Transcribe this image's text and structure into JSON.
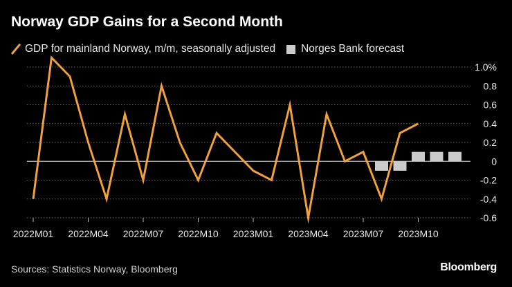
{
  "title": "Norway GDP Gains for a Second Month",
  "legend": {
    "gdp_label": "GDP for mainland Norway, m/m, seasonally adjusted",
    "forecast_label": "Norges Bank forecast"
  },
  "source": "Sources: Statistics Norway, Bloomberg",
  "brand": "Bloomberg",
  "colors": {
    "background": "#000000",
    "line": "#f0a03c",
    "forecast": "#cccccc",
    "grid": "#6e6e6e",
    "text": "#e6e6e6"
  },
  "chart_data": {
    "type": "line",
    "title": "Norway GDP Gains for a Second Month",
    "xlabel": "",
    "ylabel": "",
    "ylim": [
      -0.6,
      1.0
    ],
    "yticks": [
      -0.6,
      -0.4,
      -0.2,
      0,
      0.2,
      0.4,
      0.6,
      0.8,
      1.0
    ],
    "ytick_labels": [
      "-0.6",
      "-0.4",
      "-0.2",
      "0",
      "0.2",
      "0.4",
      "0.6",
      "0.8",
      "1.0%"
    ],
    "x_tick_labels": [
      "2022M01",
      "2022M04",
      "2022M07",
      "2022M10",
      "2023M01",
      "2023M04",
      "2023M07",
      "2023M10"
    ],
    "x_tick_indices": [
      0,
      3,
      6,
      9,
      12,
      15,
      18,
      21
    ],
    "n_periods": 24,
    "series": [
      {
        "name": "GDP for mainland Norway, m/m, seasonally adjusted",
        "type": "line",
        "start_index": 0,
        "values": [
          -0.4,
          1.1,
          0.9,
          0.2,
          -0.4,
          0.5,
          -0.2,
          0.8,
          0.2,
          -0.2,
          0.3,
          0.1,
          -0.1,
          -0.2,
          0.6,
          -0.6,
          0.5,
          0.0,
          0.1,
          -0.4,
          0.3,
          0.4
        ]
      },
      {
        "name": "Norges Bank forecast",
        "type": "bar",
        "start_index": 19,
        "values": [
          -0.1,
          -0.1,
          0.1,
          0.1,
          0.1
        ]
      }
    ]
  }
}
